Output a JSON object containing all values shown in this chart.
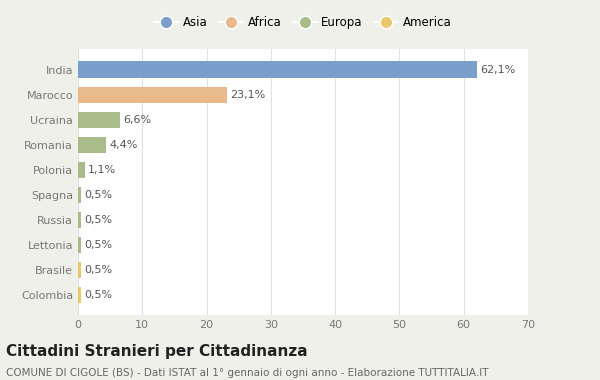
{
  "countries": [
    "India",
    "Marocco",
    "Ucraina",
    "Romania",
    "Polonia",
    "Spagna",
    "Russia",
    "Lettonia",
    "Brasile",
    "Colombia"
  ],
  "values": [
    62.1,
    23.1,
    6.6,
    4.4,
    1.1,
    0.5,
    0.5,
    0.5,
    0.5,
    0.5
  ],
  "labels": [
    "62,1%",
    "23,1%",
    "6,6%",
    "4,4%",
    "1,1%",
    "0,5%",
    "0,5%",
    "0,5%",
    "0,5%",
    "0,5%"
  ],
  "colors": [
    "#7b9fcc",
    "#e8b98a",
    "#a8bc8a",
    "#a8bc8a",
    "#a8bc8a",
    "#a8bc8a",
    "#a8bc8a",
    "#a8bc8a",
    "#e8c96a",
    "#e8c96a"
  ],
  "legend_labels": [
    "Asia",
    "Africa",
    "Europa",
    "America"
  ],
  "legend_colors": [
    "#7b9fcc",
    "#e8b98a",
    "#a8bc8a",
    "#e8c96a"
  ],
  "title": "Cittadini Stranieri per Cittadinanza",
  "subtitle": "COMUNE DI CIGOLE (BS) - Dati ISTAT al 1° gennaio di ogni anno - Elaborazione TUTTITALIA.IT",
  "xlim": [
    0,
    70
  ],
  "xticks": [
    0,
    10,
    20,
    30,
    40,
    50,
    60,
    70
  ],
  "background_color": "#f0f0eb",
  "plot_background": "#ffffff",
  "grid_color": "#e0e0e0",
  "bar_height": 0.65,
  "title_fontsize": 11,
  "subtitle_fontsize": 7.5,
  "tick_fontsize": 8,
  "label_fontsize": 8
}
